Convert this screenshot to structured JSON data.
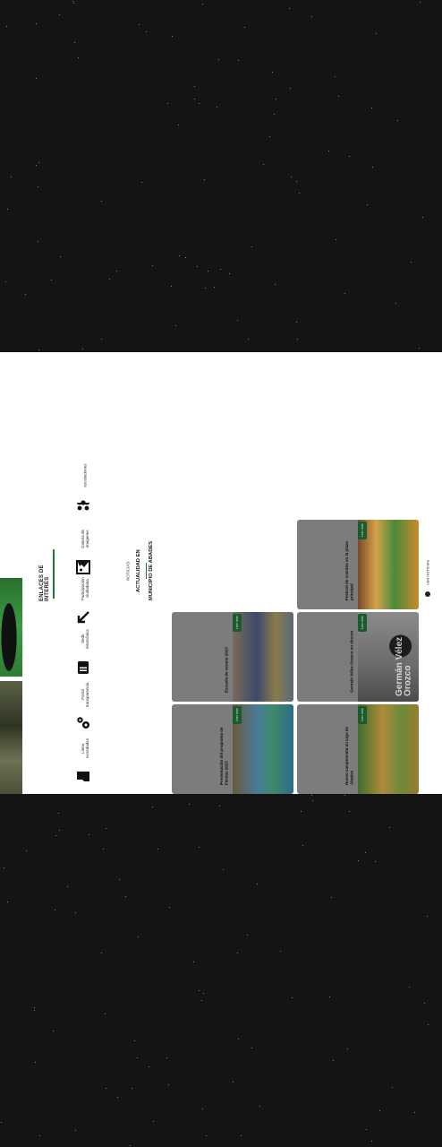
{
  "section": {
    "title": "ENLACES DE INTERÉS"
  },
  "quick_links": [
    {
      "label": "Línea\nnovedades",
      "icon": "folder-icon"
    },
    {
      "label": "Portal\ntransparencia",
      "icon": "gears-icon"
    },
    {
      "label": "Sede electrónica",
      "icon": "document-icon"
    },
    {
      "label": "Participación\nciudadana",
      "icon": "arrow-icon"
    },
    {
      "label": "Galería\nde imágenes",
      "icon": "image-icon"
    },
    {
      "label": "Asociaciones",
      "icon": "group-icon"
    }
  ],
  "news": {
    "heading_line1": "MUNICIPIO DE ABADES",
    "heading_line2": "ACTUALIDAD EN",
    "subtitle": "NOTICIAS",
    "more_label": "Leer más",
    "cards": [
      {
        "title": "Nuevo campeonato en Liga de Abades"
      },
      {
        "title": "Presentación del programa de Fiestas 2023"
      },
      {
        "title": "Germán Vélez Orozco en directo"
      },
      {
        "title": "Escuela de verano 2023"
      },
      {
        "title": "Festival de cuentos en la plaza principal"
      }
    ],
    "card2_watermark": "Germán Vélez Orozco"
  },
  "watch_label": "VER NOTICIAS"
}
